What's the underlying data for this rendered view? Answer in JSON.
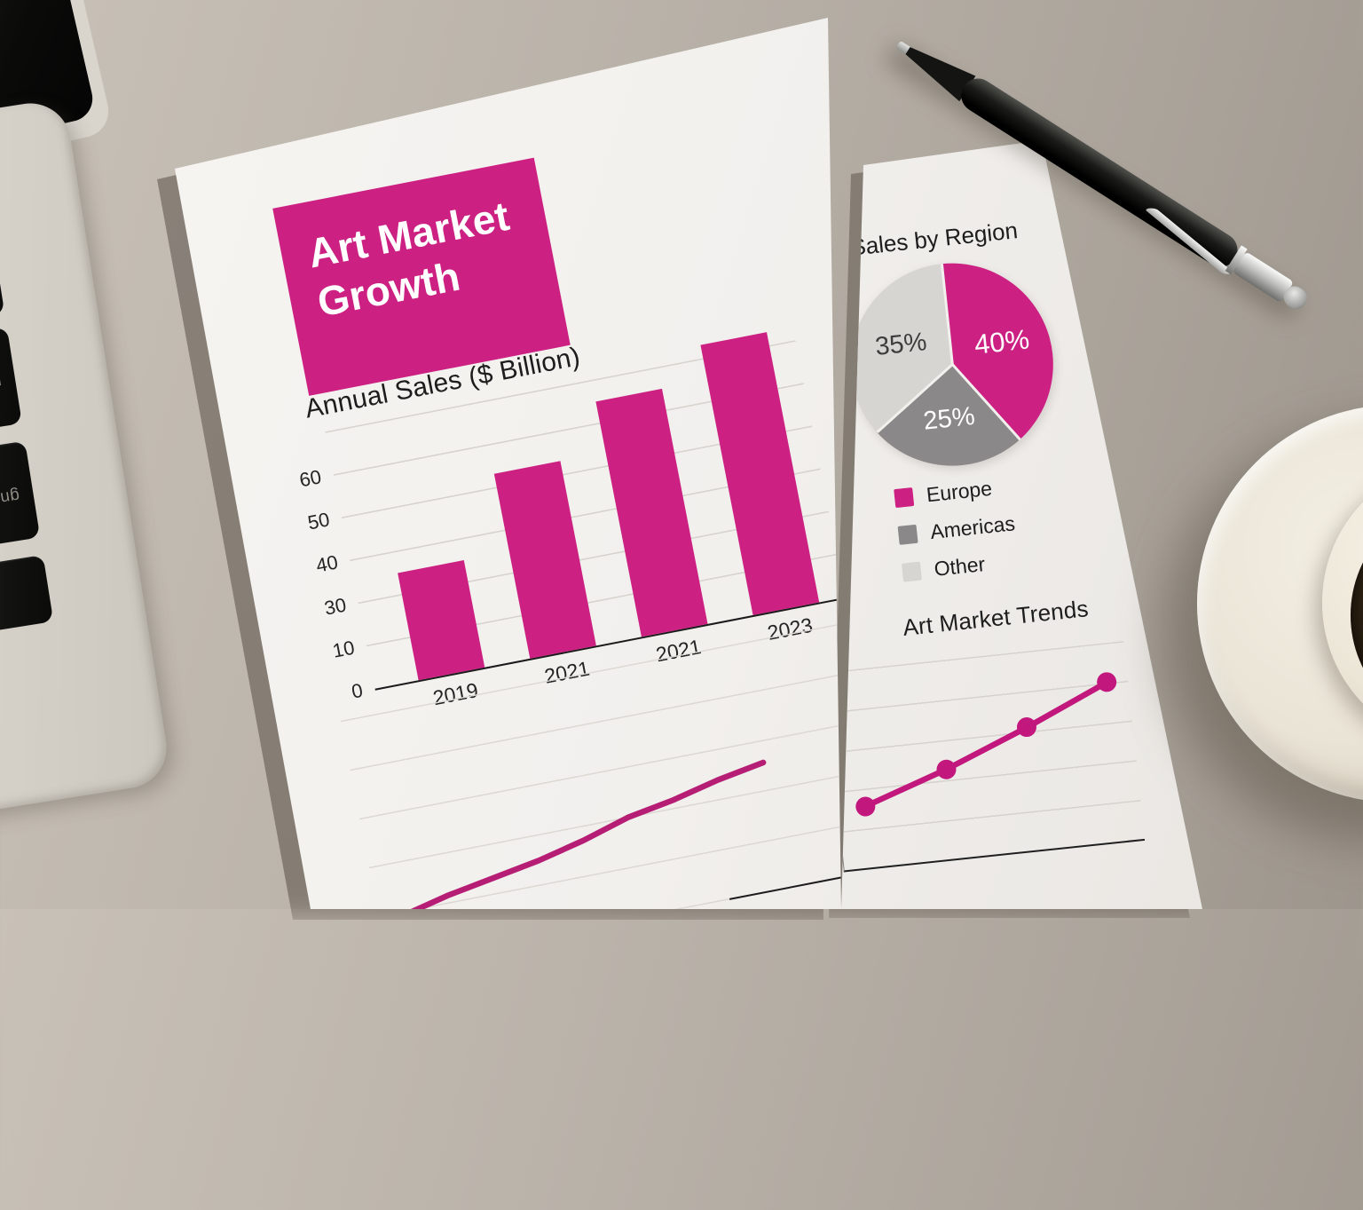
{
  "colors": {
    "accent_magenta": "#cc2183",
    "dark_gray": "#8a8888",
    "light_gray": "#d7d5d2",
    "paper": "#f2f0ed",
    "ink": "#1e1e1e"
  },
  "page1": {
    "title_block": {
      "line1": "Art Market",
      "line2": "Growth"
    }
  },
  "laptop": {
    "keys": [
      "nirl",
      "gnill"
    ],
    "play_key_glyph": "▶"
  },
  "chart_data": [
    {
      "type": "bar",
      "title": "Annual Sales ($ Billion)",
      "categories": [
        "2019",
        "2021",
        "2021",
        "2023"
      ],
      "values": [
        30,
        52,
        66,
        76
      ],
      "ytick_labels": [
        "60",
        "50",
        "40",
        "30",
        "10",
        "0"
      ],
      "axis_top_value": 60,
      "ylim": [
        0,
        80
      ],
      "grid": true,
      "bar_color": "#cc2183"
    },
    {
      "type": "pie",
      "title": "Sales by Region",
      "labels": [
        "Europe",
        "Americas",
        "Other"
      ],
      "values": [
        40,
        25,
        35
      ],
      "slice_labels": [
        "40%",
        "25%",
        "35%"
      ],
      "slice_colors": [
        "#cc2183",
        "#8a8888",
        "#d7d5d2"
      ],
      "slice_label_colors": [
        "#ffffff",
        "#ffffff",
        "#3d3d3d"
      ],
      "legend_position": "below"
    },
    {
      "type": "line",
      "title": "Art Market Trends",
      "values": [
        15,
        32,
        52,
        74
      ],
      "ylim": [
        0,
        90
      ],
      "markers": true,
      "line_color": "#c2187e",
      "grid": true,
      "legend_position": "none"
    },
    {
      "type": "line",
      "title": "",
      "values": [
        12,
        14,
        15.5,
        17,
        19,
        21.5,
        23,
        25,
        26.5
      ],
      "ylim": [
        0,
        36
      ],
      "markers": false,
      "line_color": "#b51e74",
      "grid": true,
      "legend_position": "none"
    }
  ]
}
